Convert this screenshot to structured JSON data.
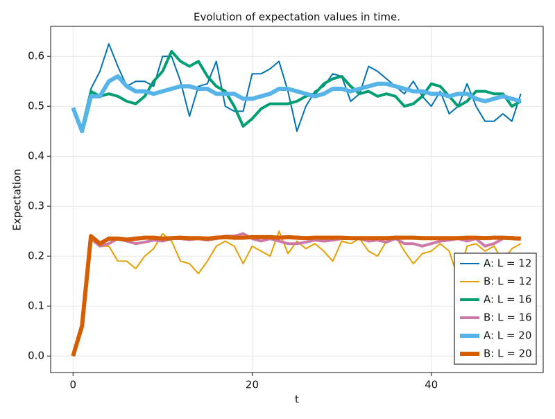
{
  "chart_data": {
    "type": "line",
    "title": "Evolution of expectation values in time.",
    "x_label": "t",
    "y_label": "Expectation",
    "x": [
      0,
      1,
      2,
      3,
      4,
      5,
      6,
      7,
      8,
      9,
      10,
      11,
      12,
      13,
      14,
      15,
      16,
      17,
      18,
      19,
      20,
      21,
      22,
      23,
      24,
      25,
      26,
      27,
      28,
      29,
      30,
      31,
      32,
      33,
      34,
      35,
      36,
      37,
      38,
      39,
      40,
      41,
      42,
      43,
      44,
      45,
      46,
      47,
      48,
      49,
      50
    ],
    "series": [
      {
        "name": "A: L = 12",
        "color": "#0072b2",
        "values": [
          0.497,
          0.45,
          0.535,
          0.57,
          0.625,
          0.58,
          0.54,
          0.55,
          0.55,
          0.54,
          0.6,
          0.6,
          0.55,
          0.48,
          0.54,
          0.545,
          0.59,
          0.5,
          0.49,
          0.49,
          0.565,
          0.565,
          0.575,
          0.59,
          0.53,
          0.45,
          0.5,
          0.53,
          0.54,
          0.565,
          0.56,
          0.51,
          0.525,
          0.58,
          0.57,
          0.555,
          0.54,
          0.525,
          0.55,
          0.52,
          0.5,
          0.53,
          0.485,
          0.5,
          0.545,
          0.5,
          0.47,
          0.47,
          0.485,
          0.47,
          0.525
        ]
      },
      {
        "name": "B: L = 12",
        "color": "#e69f00",
        "values": [
          0,
          0.06,
          0.235,
          0.22,
          0.22,
          0.19,
          0.19,
          0.175,
          0.2,
          0.215,
          0.245,
          0.23,
          0.19,
          0.185,
          0.165,
          0.19,
          0.22,
          0.23,
          0.22,
          0.185,
          0.22,
          0.21,
          0.2,
          0.25,
          0.205,
          0.23,
          0.215,
          0.225,
          0.21,
          0.19,
          0.23,
          0.225,
          0.235,
          0.21,
          0.2,
          0.23,
          0.24,
          0.21,
          0.185,
          0.205,
          0.21,
          0.225,
          0.21,
          0.155,
          0.22,
          0.225,
          0.21,
          0.22,
          0.19,
          0.215,
          0.225
        ]
      },
      {
        "name": "A: L = 16",
        "color": "#009e73",
        "values": [
          0.497,
          0.455,
          0.53,
          0.52,
          0.525,
          0.52,
          0.51,
          0.505,
          0.52,
          0.55,
          0.57,
          0.61,
          0.59,
          0.58,
          0.59,
          0.56,
          0.54,
          0.53,
          0.5,
          0.46,
          0.475,
          0.495,
          0.505,
          0.505,
          0.505,
          0.51,
          0.52,
          0.525,
          0.545,
          0.555,
          0.56,
          0.54,
          0.525,
          0.53,
          0.52,
          0.525,
          0.52,
          0.5,
          0.505,
          0.52,
          0.545,
          0.54,
          0.52,
          0.5,
          0.51,
          0.53,
          0.53,
          0.525,
          0.525,
          0.5,
          0.51
        ]
      },
      {
        "name": "B: L = 16",
        "color": "#cc79a7",
        "values": [
          0,
          0.06,
          0.235,
          0.22,
          0.225,
          0.235,
          0.23,
          0.225,
          0.228,
          0.232,
          0.23,
          0.235,
          0.235,
          0.233,
          0.235,
          0.232,
          0.235,
          0.24,
          0.24,
          0.245,
          0.235,
          0.23,
          0.235,
          0.23,
          0.225,
          0.225,
          0.228,
          0.232,
          0.23,
          0.232,
          0.235,
          0.235,
          0.235,
          0.23,
          0.232,
          0.228,
          0.235,
          0.225,
          0.225,
          0.22,
          0.225,
          0.23,
          0.232,
          0.235,
          0.23,
          0.235,
          0.22,
          0.225,
          0.235,
          0.238,
          0.235
        ]
      },
      {
        "name": "A: L = 20",
        "color": "#56b4e9",
        "values": [
          0.497,
          0.45,
          0.52,
          0.52,
          0.55,
          0.56,
          0.54,
          0.53,
          0.53,
          0.525,
          0.53,
          0.535,
          0.54,
          0.54,
          0.535,
          0.535,
          0.525,
          0.525,
          0.525,
          0.515,
          0.515,
          0.52,
          0.525,
          0.535,
          0.535,
          0.53,
          0.525,
          0.52,
          0.525,
          0.535,
          0.535,
          0.53,
          0.535,
          0.54,
          0.545,
          0.545,
          0.54,
          0.535,
          0.53,
          0.53,
          0.525,
          0.525,
          0.52,
          0.525,
          0.525,
          0.515,
          0.51,
          0.515,
          0.52,
          0.515,
          0.51
        ]
      },
      {
        "name": "B: L = 20",
        "color": "#d55e00",
        "values": [
          0,
          0.06,
          0.24,
          0.225,
          0.235,
          0.235,
          0.233,
          0.235,
          0.237,
          0.237,
          0.235,
          0.236,
          0.237,
          0.236,
          0.236,
          0.235,
          0.237,
          0.238,
          0.237,
          0.237,
          0.238,
          0.238,
          0.238,
          0.237,
          0.238,
          0.237,
          0.236,
          0.237,
          0.237,
          0.237,
          0.237,
          0.236,
          0.236,
          0.236,
          0.236,
          0.236,
          0.237,
          0.237,
          0.237,
          0.236,
          0.236,
          0.236,
          0.236,
          0.236,
          0.237,
          0.237,
          0.236,
          0.237,
          0.237,
          0.236,
          0.235
        ]
      }
    ],
    "xlim": [
      -2.5,
      52.5
    ],
    "ylim": [
      -0.033,
      0.66
    ],
    "xticks": [
      0,
      20,
      40
    ],
    "yticks": [
      {
        "value": 0,
        "label": "0.0"
      },
      0.1,
      0.2,
      0.3,
      0.4,
      0.5,
      0.6
    ],
    "grid": true,
    "legend": "lower right"
  }
}
